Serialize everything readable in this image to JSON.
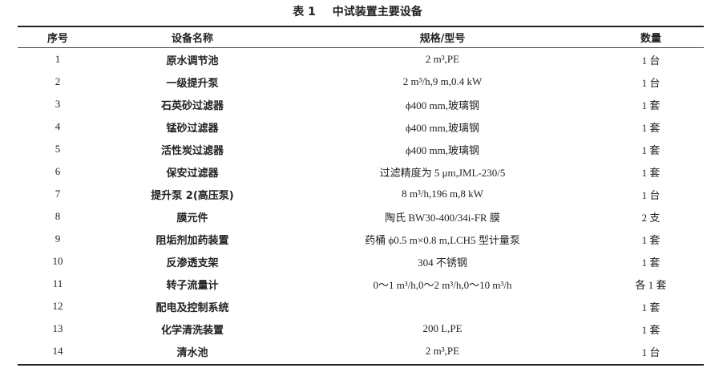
{
  "title": {
    "number": "表 1",
    "text": "中试装置主要设备"
  },
  "headers": [
    "序号",
    "设备名称",
    "规格/型号",
    "数量"
  ],
  "rows": [
    {
      "no": "1",
      "name": "原水调节池",
      "spec": "2 m³,PE",
      "qty": "1 台"
    },
    {
      "no": "2",
      "name": "一级提升泵",
      "spec": "2 m³/h,9 m,0.4 kW",
      "qty": "1 台"
    },
    {
      "no": "3",
      "name": "石英砂过滤器",
      "spec": "ϕ400 mm,玻璃钢",
      "qty": "1 套"
    },
    {
      "no": "4",
      "name": "锰砂过滤器",
      "spec": "ϕ400 mm,玻璃钢",
      "qty": "1 套"
    },
    {
      "no": "5",
      "name": "活性炭过滤器",
      "spec": "ϕ400 mm,玻璃钢",
      "qty": "1 套"
    },
    {
      "no": "6",
      "name": "保安过滤器",
      "spec": "过滤精度为 5 μm,JML-230/5",
      "qty": "1 套"
    },
    {
      "no": "7",
      "name": "提升泵 2(高压泵)",
      "spec": "8 m³/h,196 m,8 kW",
      "qty": "1 台"
    },
    {
      "no": "8",
      "name": "膜元件",
      "spec": "陶氏 BW30-400/34i-FR 膜",
      "qty": "2 支"
    },
    {
      "no": "9",
      "name": "阻垢剂加药装置",
      "spec": "药桶 ϕ0.5 m×0.8 m,LCH5 型计量泵",
      "qty": "1 套"
    },
    {
      "no": "10",
      "name": "反渗透支架",
      "spec": "304 不锈钢",
      "qty": "1 套"
    },
    {
      "no": "11",
      "name": "转子流量计",
      "spec": "0～1 m³/h,0～2 m³/h,0～10 m³/h",
      "qty": "各 1 套"
    },
    {
      "no": "12",
      "name": "配电及控制系统",
      "spec": "",
      "qty": "1 套"
    },
    {
      "no": "13",
      "name": "化学清洗装置",
      "spec": "200 L,PE",
      "qty": "1 套"
    },
    {
      "no": "14",
      "name": "清水池",
      "spec": "2 m³,PE",
      "qty": "1 台"
    }
  ]
}
